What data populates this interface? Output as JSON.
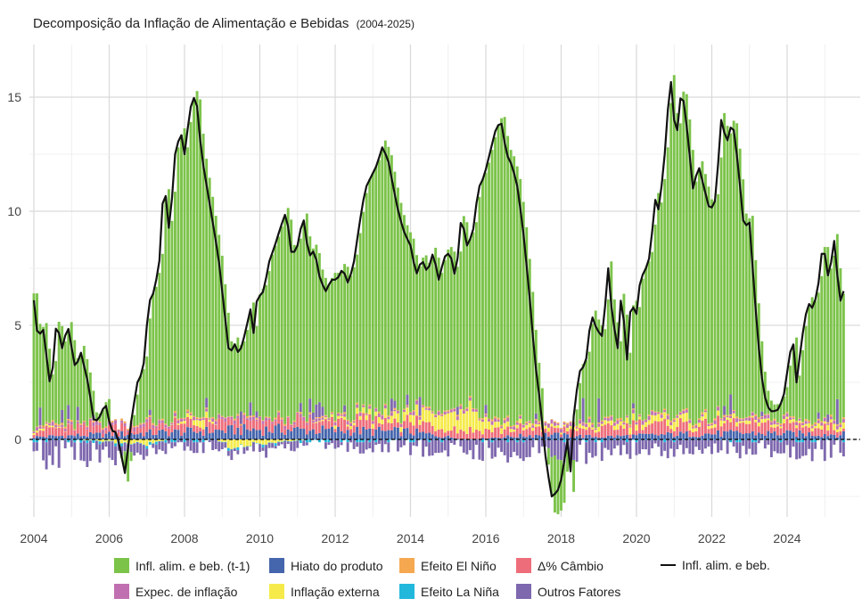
{
  "chart_data": {
    "type": "bar",
    "stacked": true,
    "title": "Decomposição da Inflação de Alimentação e Bebidas",
    "subtitle": "(2004-2025)",
    "xlabel": "",
    "ylabel": "",
    "xlim": [
      2004.0,
      2025.75
    ],
    "ylim": [
      -3,
      17
    ],
    "frequency": "monthly",
    "x_ticks": [
      2004,
      2006,
      2008,
      2010,
      2012,
      2014,
      2016,
      2018,
      2020,
      2022,
      2024
    ],
    "x_tick_labels": [
      "2004",
      "2006",
      "2008",
      "2010",
      "2012",
      "2014",
      "2016",
      "2018",
      "2020",
      "2022",
      "2024"
    ],
    "y_ticks": [
      0,
      5,
      10,
      15
    ],
    "y_tick_labels": [
      "0",
      "5",
      "10",
      "15"
    ],
    "zero_line": "dashed",
    "grid": true,
    "colors": {
      "lag": "#7cc34a",
      "hiato": "#4565ad",
      "elnino": "#f5a850",
      "cambio": "#ee6d7a",
      "expec": "#c070b0",
      "externa": "#f5ea4a",
      "lanina": "#22b8dc",
      "outros": "#7e68ae",
      "line": "#111111"
    },
    "legend": [
      {
        "key": "lag",
        "label": "Infl. alim. e beb. (t-1)",
        "kind": "bar"
      },
      {
        "key": "hiato",
        "label": "Hiato do produto",
        "kind": "bar"
      },
      {
        "key": "elnino",
        "label": "Efeito El Niño",
        "kind": "bar"
      },
      {
        "key": "cambio",
        "label": "Δ% Câmbio",
        "kind": "bar"
      },
      {
        "key": "line",
        "label": "Infl. alim. e beb.",
        "kind": "line"
      },
      {
        "key": "expec",
        "label": "Expec. de inflação",
        "kind": "bar"
      },
      {
        "key": "externa",
        "label": "Inflação externa",
        "kind": "bar"
      },
      {
        "key": "lanina",
        "label": "Efeito La Niña",
        "kind": "bar"
      },
      {
        "key": "outros",
        "label": "Outros Fatores",
        "kind": "bar"
      }
    ],
    "legend_position": "bottom",
    "line_series": {
      "name": "Infl. alim. e beb.",
      "knots": [
        [
          2004.0,
          6.1
        ],
        [
          2004.1,
          4.5
        ],
        [
          2004.25,
          4.8
        ],
        [
          2004.45,
          2.1
        ],
        [
          2004.6,
          5.2
        ],
        [
          2004.75,
          4.0
        ],
        [
          2004.9,
          5.0
        ],
        [
          2005.1,
          3.1
        ],
        [
          2005.25,
          3.8
        ],
        [
          2005.45,
          2.4
        ],
        [
          2005.6,
          0.7
        ],
        [
          2005.75,
          1.0
        ],
        [
          2005.9,
          1.6
        ],
        [
          2006.05,
          0.4
        ],
        [
          2006.2,
          0.3
        ],
        [
          2006.42,
          -1.5
        ],
        [
          2006.6,
          1.0
        ],
        [
          2006.75,
          2.5
        ],
        [
          2006.9,
          3.0
        ],
        [
          2007.05,
          6.0
        ],
        [
          2007.2,
          6.5
        ],
        [
          2007.35,
          8.0
        ],
        [
          2007.45,
          11.5
        ],
        [
          2007.6,
          9.0
        ],
        [
          2007.75,
          12.5
        ],
        [
          2007.9,
          13.5
        ],
        [
          2008.0,
          12.5
        ],
        [
          2008.15,
          14.5
        ],
        [
          2008.3,
          15.2
        ],
        [
          2008.45,
          12.5
        ],
        [
          2008.6,
          11.0
        ],
        [
          2008.75,
          9.5
        ],
        [
          2008.9,
          8.0
        ],
        [
          2009.1,
          5.0
        ],
        [
          2009.2,
          3.5
        ],
        [
          2009.3,
          4.3
        ],
        [
          2009.45,
          3.7
        ],
        [
          2009.6,
          4.6
        ],
        [
          2009.75,
          5.7
        ],
        [
          2009.8,
          4.0
        ],
        [
          2009.9,
          6.0
        ],
        [
          2010.0,
          6.3
        ],
        [
          2010.1,
          6.5
        ],
        [
          2010.25,
          7.8
        ],
        [
          2010.4,
          8.5
        ],
        [
          2010.55,
          9.3
        ],
        [
          2010.7,
          10.0
        ],
        [
          2010.85,
          8.0
        ],
        [
          2011.0,
          8.5
        ],
        [
          2011.15,
          9.8
        ],
        [
          2011.3,
          8.0
        ],
        [
          2011.45,
          8.3
        ],
        [
          2011.6,
          7.0
        ],
        [
          2011.75,
          6.5
        ],
        [
          2011.9,
          7.0
        ],
        [
          2012.05,
          7.0
        ],
        [
          2012.2,
          7.5
        ],
        [
          2012.35,
          6.8
        ],
        [
          2012.5,
          7.8
        ],
        [
          2012.65,
          9.5
        ],
        [
          2012.8,
          11.0
        ],
        [
          2012.95,
          11.5
        ],
        [
          2013.1,
          12.0
        ],
        [
          2013.25,
          12.8
        ],
        [
          2013.4,
          12.3
        ],
        [
          2013.55,
          11.0
        ],
        [
          2013.7,
          9.8
        ],
        [
          2013.85,
          9.0
        ],
        [
          2014.0,
          8.5
        ],
        [
          2014.15,
          7.2
        ],
        [
          2014.3,
          7.9
        ],
        [
          2014.45,
          7.3
        ],
        [
          2014.6,
          8.2
        ],
        [
          2014.75,
          7.0
        ],
        [
          2014.9,
          8.0
        ],
        [
          2015.05,
          8.2
        ],
        [
          2015.2,
          7.0
        ],
        [
          2015.35,
          9.8
        ],
        [
          2015.5,
          8.5
        ],
        [
          2015.65,
          9.0
        ],
        [
          2015.8,
          11.0
        ],
        [
          2015.95,
          11.5
        ],
        [
          2016.1,
          12.5
        ],
        [
          2016.25,
          13.5
        ],
        [
          2016.4,
          14.0
        ],
        [
          2016.55,
          12.5
        ],
        [
          2016.7,
          12.0
        ],
        [
          2016.85,
          11.0
        ],
        [
          2017.0,
          9.0
        ],
        [
          2017.15,
          6.5
        ],
        [
          2017.3,
          3.5
        ],
        [
          2017.45,
          1.5
        ],
        [
          2017.6,
          -1.0
        ],
        [
          2017.75,
          -2.5
        ],
        [
          2017.9,
          -2.3
        ],
        [
          2018.05,
          -1.5
        ],
        [
          2018.15,
          0.2
        ],
        [
          2018.25,
          -1.4
        ],
        [
          2018.35,
          1.5
        ],
        [
          2018.5,
          3.0
        ],
        [
          2018.65,
          3.3
        ],
        [
          2018.8,
          5.5
        ],
        [
          2018.95,
          4.8
        ],
        [
          2019.1,
          4.5
        ],
        [
          2019.25,
          7.5
        ],
        [
          2019.35,
          5.5
        ],
        [
          2019.5,
          4.0
        ],
        [
          2019.6,
          6.5
        ],
        [
          2019.75,
          3.5
        ],
        [
          2019.85,
          6.0
        ],
        [
          2020.0,
          5.5
        ],
        [
          2020.1,
          7.0
        ],
        [
          2020.25,
          7.5
        ],
        [
          2020.35,
          8.0
        ],
        [
          2020.5,
          10.5
        ],
        [
          2020.6,
          10.0
        ],
        [
          2020.75,
          12.5
        ],
        [
          2020.9,
          16.0
        ],
        [
          2021.05,
          13.0
        ],
        [
          2021.2,
          15.5
        ],
        [
          2021.35,
          13.5
        ],
        [
          2021.5,
          11.0
        ],
        [
          2021.65,
          12.0
        ],
        [
          2021.8,
          11.0
        ],
        [
          2021.95,
          10.0
        ],
        [
          2022.1,
          10.5
        ],
        [
          2022.25,
          14.0
        ],
        [
          2022.4,
          13.0
        ],
        [
          2022.55,
          14.0
        ],
        [
          2022.7,
          12.0
        ],
        [
          2022.85,
          9.3
        ],
        [
          2023.0,
          9.5
        ],
        [
          2023.15,
          6.0
        ],
        [
          2023.3,
          3.0
        ],
        [
          2023.45,
          1.5
        ],
        [
          2023.6,
          1.2
        ],
        [
          2023.75,
          1.3
        ],
        [
          2023.9,
          1.8
        ],
        [
          2024.05,
          3.5
        ],
        [
          2024.15,
          4.5
        ],
        [
          2024.25,
          2.5
        ],
        [
          2024.4,
          4.5
        ],
        [
          2024.55,
          6.0
        ],
        [
          2024.7,
          5.7
        ],
        [
          2024.85,
          7.0
        ],
        [
          2024.95,
          8.7
        ],
        [
          2025.1,
          7.0
        ],
        [
          2025.25,
          8.7
        ],
        [
          2025.4,
          6.0
        ],
        [
          2025.5,
          6.5
        ],
        [
          2025.58,
          6.1
        ]
      ]
    },
    "bar_series": {
      "lag": "previous month value of the line series",
      "components": [
        {
          "key": "hiato",
          "sign": "positive",
          "knots": [
            [
              2004,
              0.1
            ],
            [
              2008,
              0.3
            ],
            [
              2010,
              0.4
            ],
            [
              2014,
              0.3
            ],
            [
              2015.5,
              0.0
            ],
            [
              2017.5,
              0.2
            ],
            [
              2019,
              0.1
            ],
            [
              2021,
              0.2
            ],
            [
              2023,
              0.25
            ],
            [
              2025.58,
              0.2
            ]
          ]
        },
        {
          "key": "cambio",
          "sign": "positive",
          "knots": [
            [
              2004,
              0.3
            ],
            [
              2010,
              0.3
            ],
            [
              2015,
              0.4
            ],
            [
              2018,
              0.2
            ],
            [
              2020,
              0.4
            ],
            [
              2025.58,
              0.3
            ]
          ]
        },
        {
          "key": "externa",
          "sign": "mixed",
          "knots": [
            [
              2004,
              0.1
            ],
            [
              2007,
              -0.2
            ],
            [
              2008.5,
              0.3
            ],
            [
              2009.2,
              -0.3
            ],
            [
              2012,
              0.1
            ],
            [
              2014.8,
              0.5
            ],
            [
              2015.6,
              0.8
            ],
            [
              2016.2,
              0.2
            ],
            [
              2018,
              0.1
            ],
            [
              2021,
              0.3
            ],
            [
              2023,
              0.1
            ],
            [
              2025.58,
              0.2
            ]
          ]
        },
        {
          "key": "expec",
          "sign": "positive",
          "knots": [
            [
              2004,
              0.1
            ],
            [
              2025.58,
              0.1
            ]
          ]
        },
        {
          "key": "elnino",
          "sign": "positive",
          "knots": [
            [
              2004,
              0.05
            ],
            [
              2025.58,
              0.05
            ]
          ]
        },
        {
          "key": "lanina",
          "sign": "negative",
          "knots": [
            [
              2004,
              0.05
            ],
            [
              2025.58,
              0.05
            ]
          ]
        },
        {
          "key": "outros",
          "sign": "mixed",
          "knots": [
            [
              2004,
              -0.8
            ],
            [
              2008,
              -0.3
            ],
            [
              2012,
              -0.3
            ],
            [
              2018,
              -0.6
            ],
            [
              2022,
              -0.4
            ],
            [
              2025.58,
              -0.6
            ]
          ]
        }
      ]
    }
  }
}
